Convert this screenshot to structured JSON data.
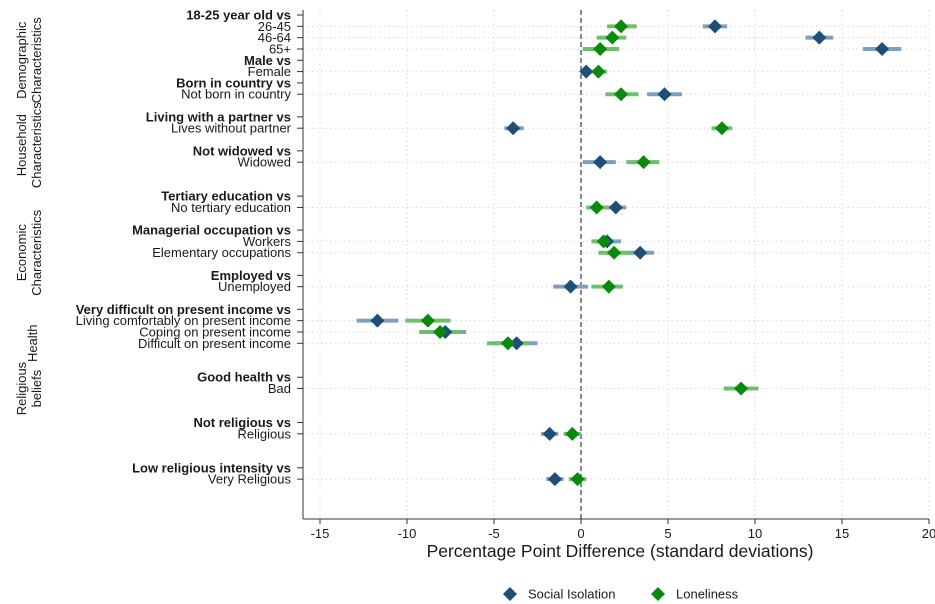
{
  "chart_data": {
    "type": "scatter",
    "title": "",
    "xlabel": "Percentage Point Difference (standard deviations)",
    "ylabel": "",
    "xlim": [
      -15,
      20
    ],
    "xticks": [
      -15,
      -10,
      -5,
      0,
      5,
      10,
      15,
      20
    ],
    "grid": true,
    "legend_position": "bottom",
    "colors": {
      "social_isolation": "#1f4e79",
      "loneliness": "#0a8a0a"
    },
    "series": [
      {
        "name": "Social Isolation",
        "key": "social_isolation",
        "marker": "diamond"
      },
      {
        "name": "Loneliness",
        "key": "loneliness",
        "marker": "diamond"
      }
    ],
    "groups": [
      {
        "label": "Demographic Characteristics",
        "lines": [
          "Demographic",
          "Characteristics"
        ],
        "rows": [
          0,
          8
        ]
      },
      {
        "label": "Household Characteristics",
        "lines": [
          "Household",
          "Characteristics"
        ],
        "rows": [
          9,
          14
        ]
      },
      {
        "label": "Economic Characteristics",
        "lines": [
          "Economic",
          "Characteristics"
        ],
        "rows": [
          15,
          27
        ]
      },
      {
        "label": "Health",
        "lines": [
          "Health"
        ],
        "rows": [
          28,
          30
        ]
      },
      {
        "label": "Religious beliefs",
        "lines": [
          "Religious",
          "beliefs"
        ],
        "rows": [
          31,
          35
        ]
      }
    ],
    "rows": [
      {
        "label": "18-25 year old vs",
        "bold": true
      },
      {
        "label": "26-45",
        "si": {
          "v": 7.7,
          "lo": 7.0,
          "hi": 8.4
        },
        "lon": {
          "v": 2.3,
          "lo": 1.5,
          "hi": 3.2
        }
      },
      {
        "label": "46-64",
        "si": {
          "v": 13.7,
          "lo": 12.9,
          "hi": 14.5
        },
        "lon": {
          "v": 1.8,
          "lo": 0.9,
          "hi": 2.6
        }
      },
      {
        "label": "65+",
        "si": {
          "v": 17.3,
          "lo": 16.2,
          "hi": 18.4
        },
        "lon": {
          "v": 1.1,
          "lo": 0.1,
          "hi": 2.2
        }
      },
      {
        "label": "Male vs",
        "bold": true
      },
      {
        "label": "Female",
        "si": {
          "v": 0.3,
          "lo": 0.0,
          "hi": 0.6
        },
        "lon": {
          "v": 1.0,
          "lo": 0.6,
          "hi": 1.5
        }
      },
      {
        "label": "Born in country vs",
        "bold": true
      },
      {
        "label": "Not born in country",
        "si": {
          "v": 4.8,
          "lo": 3.8,
          "hi": 5.8
        },
        "lon": {
          "v": 2.3,
          "lo": 1.4,
          "hi": 3.3
        }
      },
      {
        "label": ""
      },
      {
        "label": "Living with a partner vs",
        "bold": true
      },
      {
        "label": "Lives without partner",
        "si": {
          "v": -3.9,
          "lo": -4.4,
          "hi": -3.3
        },
        "lon": {
          "v": 8.1,
          "lo": 7.5,
          "hi": 8.7
        }
      },
      {
        "label": ""
      },
      {
        "label": "Not widowed vs",
        "bold": true
      },
      {
        "label": "Widowed",
        "si": {
          "v": 1.1,
          "lo": 0.1,
          "hi": 2.0
        },
        "lon": {
          "v": 3.6,
          "lo": 2.6,
          "hi": 4.5
        }
      },
      {
        "label": ""
      },
      {
        "label": ""
      },
      {
        "label": "Tertiary education vs",
        "bold": true
      },
      {
        "label": "No tertiary education",
        "si": {
          "v": 2.0,
          "lo": 1.5,
          "hi": 2.6
        },
        "lon": {
          "v": 0.9,
          "lo": 0.3,
          "hi": 1.6
        }
      },
      {
        "label": ""
      },
      {
        "label": "Managerial occupation vs",
        "bold": true
      },
      {
        "label": "Workers",
        "si": {
          "v": 1.5,
          "lo": 0.8,
          "hi": 2.3
        },
        "lon": {
          "v": 1.3,
          "lo": 0.6,
          "hi": 2.0
        }
      },
      {
        "label": "Elementary occupations",
        "si": {
          "v": 3.4,
          "lo": 2.6,
          "hi": 4.2
        },
        "lon": {
          "v": 1.9,
          "lo": 1.0,
          "hi": 2.9
        }
      },
      {
        "label": ""
      },
      {
        "label": "Employed vs",
        "bold": true
      },
      {
        "label": "Unemployed",
        "si": {
          "v": -0.6,
          "lo": -1.6,
          "hi": 0.4
        },
        "lon": {
          "v": 1.6,
          "lo": 0.6,
          "hi": 2.4
        }
      },
      {
        "label": ""
      },
      {
        "label": "Very difficult on present income vs",
        "bold": true
      },
      {
        "label": "Living comfortably on present income",
        "si": {
          "v": -11.7,
          "lo": -12.9,
          "hi": -10.5
        },
        "lon": {
          "v": -8.8,
          "lo": -10.1,
          "hi": -7.5
        }
      },
      {
        "label": "Coping on present income",
        "si": {
          "v": -7.8,
          "lo": -9.0,
          "hi": -6.6
        },
        "lon": {
          "v": -8.1,
          "lo": -9.3,
          "hi": -6.9
        }
      },
      {
        "label": "Difficult on present income",
        "si": {
          "v": -3.7,
          "lo": -4.9,
          "hi": -2.5
        },
        "lon": {
          "v": -4.2,
          "lo": -5.4,
          "hi": -3.0
        }
      },
      {
        "label": ""
      },
      {
        "label": ""
      },
      {
        "label": "Good health vs",
        "bold": true
      },
      {
        "label": "Bad",
        "lon": {
          "v": 9.2,
          "lo": 8.2,
          "hi": 10.2
        }
      },
      {
        "label": ""
      },
      {
        "label": ""
      },
      {
        "label": "Not religious vs",
        "bold": true
      },
      {
        "label": "Religious",
        "si": {
          "v": -1.8,
          "lo": -2.3,
          "hi": -1.3
        },
        "lon": {
          "v": -0.5,
          "lo": -1.0,
          "hi": 0.0
        }
      },
      {
        "label": ""
      },
      {
        "label": ""
      },
      {
        "label": "Low religious intensity vs",
        "bold": true
      },
      {
        "label": "Very Religious",
        "si": {
          "v": -1.5,
          "lo": -2.0,
          "hi": -1.0
        },
        "lon": {
          "v": -0.2,
          "lo": -0.7,
          "hi": 0.3
        }
      }
    ]
  }
}
